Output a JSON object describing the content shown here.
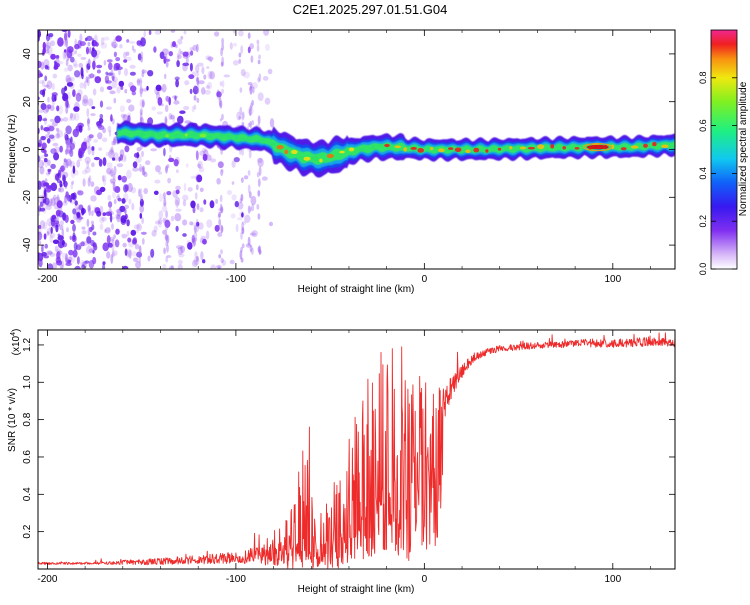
{
  "figure_title": "C2E1.2025.297.01.51.G04",
  "colors": {
    "snr_line": "#ee2b2b",
    "axis": "#000000",
    "ridge_core": "#d01818",
    "ridge_mid": "#30e860",
    "ridge_outer": "#12a8e8",
    "ridge_edge": "#4a10e6",
    "noise": "#8a3ef0"
  },
  "colorbar": {
    "label": "Normalized spectral amplitude",
    "ticks": [
      "0.0",
      "0.2",
      "0.4",
      "0.6",
      "0.8"
    ],
    "tick_values": [
      0.0,
      0.2,
      0.4,
      0.6,
      0.8
    ],
    "range": [
      0,
      1
    ],
    "stops": [
      {
        "v": 0.0,
        "c": "#ffffff"
      },
      {
        "v": 0.06,
        "c": "#d8b8f8"
      },
      {
        "v": 0.16,
        "c": "#8030f0"
      },
      {
        "v": 0.26,
        "c": "#3818f0"
      },
      {
        "v": 0.36,
        "c": "#1060f8"
      },
      {
        "v": 0.46,
        "c": "#10c8f0"
      },
      {
        "v": 0.58,
        "c": "#20f080"
      },
      {
        "v": 0.7,
        "c": "#80f020"
      },
      {
        "v": 0.8,
        "c": "#f0e810"
      },
      {
        "v": 0.88,
        "c": "#f89010"
      },
      {
        "v": 0.94,
        "c": "#f02020"
      },
      {
        "v": 1.0,
        "c": "#f02890"
      }
    ]
  },
  "chart_data": [
    {
      "type": "heatmap",
      "name": "spectrogram",
      "title": "C2E1.2025.297.01.51.G04",
      "xlabel": "Height of straight line (km)",
      "ylabel": "Frequency (Hz)",
      "xlim": [
        -205,
        133
      ],
      "ylim": [
        -50,
        50
      ],
      "xticks": [
        -200,
        -100,
        0,
        100
      ],
      "xtick_labels": [
        "-200",
        "-100",
        "0",
        "100"
      ],
      "yticks": [
        -40,
        -20,
        0,
        20,
        40
      ],
      "ytick_labels": [
        "-40",
        "-20",
        "0",
        "20",
        "40"
      ],
      "ridge_center_hz": [
        {
          "x": -160,
          "y": 7
        },
        {
          "x": -140,
          "y": 6
        },
        {
          "x": -120,
          "y": 6
        },
        {
          "x": -100,
          "y": 5
        },
        {
          "x": -85,
          "y": 4
        },
        {
          "x": -75,
          "y": 0
        },
        {
          "x": -65,
          "y": -3
        },
        {
          "x": -55,
          "y": -4
        },
        {
          "x": -45,
          "y": -2
        },
        {
          "x": -35,
          "y": 0
        },
        {
          "x": -25,
          "y": 1
        },
        {
          "x": -15,
          "y": 1
        },
        {
          "x": 0,
          "y": 0
        },
        {
          "x": 30,
          "y": 0
        },
        {
          "x": 60,
          "y": 0.5
        },
        {
          "x": 90,
          "y": 1
        },
        {
          "x": 110,
          "y": 1
        },
        {
          "x": 133,
          "y": 2
        }
      ],
      "noise_extent_km": [
        -205,
        -80
      ],
      "peak_amplitude_at_km": 92
    },
    {
      "type": "line",
      "name": "snr",
      "xlabel": "Height of straight line (km)",
      "ylabel": "SNR (10 * v/v)",
      "y_scale_label": "(x10",
      "y_scale_exponent": "4",
      "xlim": [
        -205,
        133
      ],
      "ylim": [
        0,
        1.28
      ],
      "xticks": [
        -200,
        -100,
        0,
        100
      ],
      "xtick_labels": [
        "-200",
        "-100",
        "0",
        "100"
      ],
      "yticks": [
        0.2,
        0.4,
        0.6,
        0.8,
        1.0,
        1.2
      ],
      "ytick_labels": [
        "0.2",
        "0.4",
        "0.6",
        "0.8",
        "1.0",
        "1.2"
      ],
      "series": [
        {
          "name": "SNR",
          "x": [
            -205,
            -180,
            -160,
            -140,
            -120,
            -100,
            -90,
            -80,
            -70,
            -64,
            -61,
            -58,
            -52,
            -45,
            -40,
            -35,
            -30,
            -25,
            -22,
            -18,
            -15,
            -10,
            -5,
            0,
            5,
            10,
            15,
            20,
            25,
            30,
            35,
            40,
            50,
            60,
            70,
            80,
            90,
            100,
            110,
            120,
            133
          ],
          "baseline": [
            0.03,
            0.03,
            0.035,
            0.04,
            0.05,
            0.06,
            0.07,
            0.09,
            0.12,
            0.15,
            0.1,
            0.08,
            0.12,
            0.18,
            0.22,
            0.28,
            0.32,
            0.38,
            0.4,
            0.45,
            0.48,
            0.55,
            0.62,
            0.72,
            0.8,
            0.88,
            0.98,
            1.06,
            1.12,
            1.15,
            1.17,
            1.18,
            1.19,
            1.2,
            1.2,
            1.21,
            1.21,
            1.21,
            1.21,
            1.22,
            1.21
          ],
          "spike": [
            0.01,
            0.01,
            0.02,
            0.03,
            0.04,
            0.05,
            0.08,
            0.12,
            0.2,
            0.55,
            0.4,
            0.2,
            0.3,
            0.35,
            0.5,
            0.6,
            0.75,
            0.7,
            0.8,
            0.6,
            0.55,
            0.5,
            0.4,
            0.3,
            0.2,
            0.15,
            0.1,
            0.06,
            0.04,
            0.03,
            0.03,
            0.03,
            0.03,
            0.03,
            0.03,
            0.03,
            0.04,
            0.04,
            0.04,
            0.04,
            0.04
          ],
          "peak_points": [
            {
              "x": -61,
              "y": 0.76
            },
            {
              "x": -23,
              "y": 1.16
            },
            {
              "x": -17,
              "y": 1.18
            },
            {
              "x": -12,
              "y": 1.19
            }
          ]
        }
      ]
    }
  ]
}
